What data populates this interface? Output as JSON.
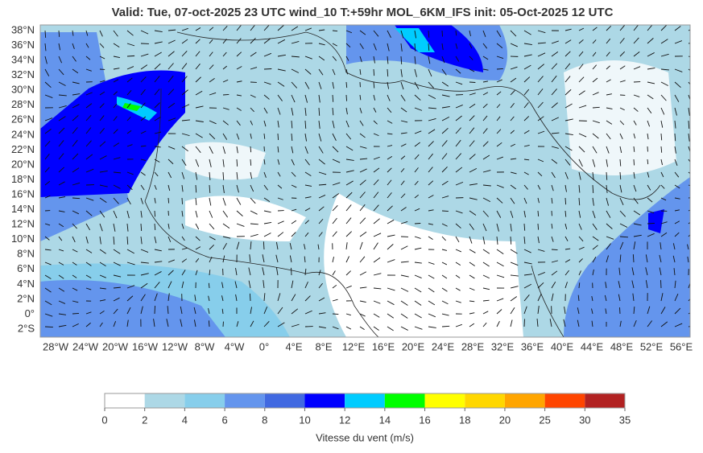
{
  "header": {
    "title": "Valid: Tue, 07-oct-2025   23 UTC   wind_10   T:+59hr   MOL_6KM_IFS   init: 05-Oct-2025    12 UTC"
  },
  "map": {
    "lat_labels": [
      "38°N",
      "36°N",
      "34°N",
      "32°N",
      "30°N",
      "28°N",
      "26°N",
      "24°N",
      "22°N",
      "20°N",
      "18°N",
      "16°N",
      "14°N",
      "12°N",
      "10°N",
      "8°N",
      "6°N",
      "4°N",
      "2°N",
      "0°",
      "2°S"
    ],
    "lon_labels": [
      "28°W",
      "24°W",
      "20°W",
      "16°W",
      "12°W",
      "8°W",
      "4°W",
      "0°",
      "4°E",
      "8°E",
      "12°E",
      "16°E",
      "20°E",
      "24°E",
      "28°E",
      "32°E",
      "36°E",
      "40°E",
      "44°E",
      "48°E",
      "52°E",
      "56°E"
    ]
  },
  "legend": {
    "label": "Vitesse du vent (m/s)",
    "ticks": [
      0,
      2,
      4,
      6,
      8,
      10,
      12,
      14,
      16,
      18,
      20,
      25,
      30,
      35
    ],
    "colors": [
      "#ffffff",
      "#add8e6",
      "#87ceeb",
      "#6495ed",
      "#4169e1",
      "#0000ff",
      "#00ccff",
      "#00ff00",
      "#ffff00",
      "#ffd700",
      "#ffa500",
      "#ff4500",
      "#b22222"
    ]
  }
}
